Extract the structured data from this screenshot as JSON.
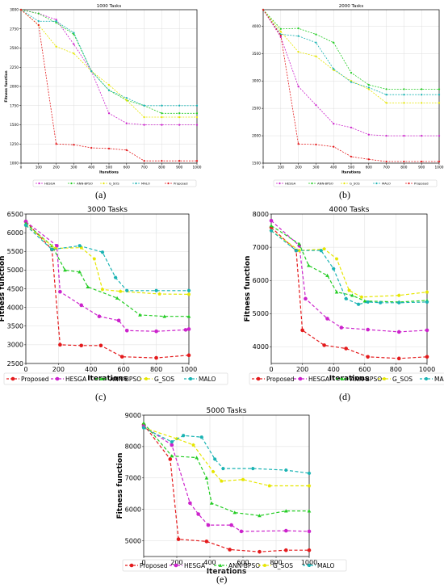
{
  "panel_labels": [
    "(a)",
    "(b)",
    "(c)",
    "(d)",
    "(e)"
  ],
  "colors": {
    "Proposed": "#e41a1c",
    "HESGA": "#cc22cc",
    "ANN-BPSO": "#22cc22",
    "G_SOS": "#e6e600",
    "MALO": "#19b3b3"
  },
  "chart_data": [
    {
      "type": "line",
      "title": "1000 Tasks",
      "xlabel": "Iterations",
      "ylabel": "Fitness function",
      "xlim": [
        0,
        1000
      ],
      "ylim": [
        1000,
        3000
      ],
      "xticks": [
        "0",
        "100",
        "200",
        "300",
        "400",
        "500",
        "600",
        "700",
        "800",
        "900",
        "1000"
      ],
      "yticks": [
        "1000",
        "1250",
        "1500",
        "1750",
        "2000",
        "2250",
        "2500",
        "2750",
        "3000"
      ],
      "legend": [
        "HESGA",
        "ANN-BPSO",
        "G_SOS",
        "MALO",
        "Proposed"
      ],
      "legend_position": "bottom",
      "grid": true,
      "series": [
        {
          "name": "HESGA",
          "x": [
            0,
            100,
            200,
            300,
            400,
            500,
            600,
            700,
            800,
            900,
            1000
          ],
          "y": [
            3000,
            2950,
            2870,
            2550,
            2200,
            1650,
            1520,
            1500,
            1500,
            1500,
            1500
          ]
        },
        {
          "name": "ANN-BPSO",
          "x": [
            0,
            100,
            200,
            300,
            400,
            500,
            600,
            700,
            800,
            900,
            1000
          ],
          "y": [
            3000,
            2950,
            2830,
            2680,
            2200,
            1950,
            1820,
            1750,
            1650,
            1650,
            1650
          ]
        },
        {
          "name": "G_SOS",
          "x": [
            0,
            100,
            200,
            300,
            400,
            500,
            600,
            700,
            800,
            900,
            1000
          ],
          "y": [
            3000,
            2800,
            2520,
            2430,
            2200,
            2020,
            1820,
            1600,
            1600,
            1600,
            1600
          ]
        },
        {
          "name": "MALO",
          "x": [
            0,
            100,
            200,
            300,
            400,
            500,
            600,
            700,
            800,
            900,
            1000
          ],
          "y": [
            3000,
            2850,
            2850,
            2700,
            2200,
            1950,
            1850,
            1750,
            1750,
            1750,
            1750
          ]
        },
        {
          "name": "Proposed",
          "x": [
            0,
            100,
            200,
            300,
            400,
            500,
            600,
            700,
            800,
            900,
            1000
          ],
          "y": [
            3000,
            2800,
            1250,
            1240,
            1200,
            1190,
            1170,
            1030,
            1030,
            1030,
            1030
          ]
        }
      ]
    },
    {
      "type": "line",
      "title": "2000 Tasks",
      "xlabel": "Iterations",
      "ylabel": "",
      "xlim": [
        0,
        1000
      ],
      "ylim": [
        1500,
        4300
      ],
      "xticks": [
        "0",
        "100",
        "200",
        "300",
        "400",
        "500",
        "600",
        "700",
        "800",
        "900",
        "1000"
      ],
      "yticks": [
        "1500",
        "2000",
        "2500",
        "3000",
        "3500",
        "4000"
      ],
      "legend": [
        "HESGA",
        "ANN-BPSO",
        "G_SOS",
        "MALO",
        "Proposed"
      ],
      "legend_position": "bottom",
      "grid": true,
      "series": [
        {
          "name": "HESGA",
          "x": [
            0,
            100,
            200,
            300,
            400,
            500,
            600,
            700,
            800,
            900,
            1000
          ],
          "y": [
            4300,
            3800,
            2900,
            2560,
            2220,
            2150,
            2020,
            2000,
            2000,
            2000,
            2000
          ]
        },
        {
          "name": "ANN-BPSO",
          "x": [
            0,
            100,
            200,
            300,
            400,
            500,
            600,
            700,
            800,
            900,
            1000
          ],
          "y": [
            4300,
            3950,
            3960,
            3850,
            3700,
            3150,
            2930,
            2850,
            2850,
            2850,
            2850
          ]
        },
        {
          "name": "G_SOS",
          "x": [
            0,
            100,
            200,
            300,
            400,
            500,
            600,
            700,
            800,
            900,
            1000
          ],
          "y": [
            4300,
            3900,
            3530,
            3450,
            3200,
            3000,
            2850,
            2600,
            2600,
            2600,
            2600
          ]
        },
        {
          "name": "MALO",
          "x": [
            0,
            100,
            200,
            300,
            400,
            500,
            600,
            700,
            800,
            900,
            1000
          ],
          "y": [
            4300,
            3850,
            3820,
            3700,
            3220,
            2980,
            2880,
            2750,
            2750,
            2750,
            2750
          ]
        },
        {
          "name": "Proposed",
          "x": [
            0,
            100,
            200,
            300,
            400,
            500,
            600,
            700,
            800,
            900,
            1000
          ],
          "y": [
            4300,
            3830,
            1850,
            1840,
            1800,
            1620,
            1570,
            1530,
            1530,
            1530,
            1530
          ]
        }
      ]
    },
    {
      "type": "line",
      "title": "3000 Tasks",
      "xlabel": "Iterations",
      "ylabel": "Fitness function",
      "xlim": [
        0,
        1000
      ],
      "ylim": [
        2500,
        6500
      ],
      "xticks": [
        "0",
        "200",
        "400",
        "600",
        "800",
        "1000"
      ],
      "yticks": [
        "2500",
        "3000",
        "3500",
        "4000",
        "4500",
        "5000",
        "5500",
        "6000",
        "6500"
      ],
      "legend": [
        "Proposed",
        "HESGA",
        "ANN-BPSO",
        "G_SOS",
        "MALO"
      ],
      "legend_position": "bottom",
      "grid": true,
      "series": [
        {
          "name": "Proposed",
          "x": [
            0,
            160,
            210,
            340,
            460,
            590,
            800,
            1000
          ],
          "y": [
            6300,
            5550,
            3000,
            2980,
            2980,
            2680,
            2650,
            2720
          ]
        },
        {
          "name": "HESGA",
          "x": [
            0,
            190,
            210,
            340,
            450,
            570,
            620,
            800,
            980,
            1000
          ],
          "y": [
            6300,
            5650,
            4420,
            4060,
            3760,
            3650,
            3380,
            3360,
            3400,
            3420
          ]
        },
        {
          "name": "ANN-BPSO",
          "x": [
            0,
            160,
            240,
            330,
            380,
            560,
            700,
            850,
            1000
          ],
          "y": [
            6250,
            5650,
            5000,
            4950,
            4550,
            4250,
            3800,
            3760,
            3760
          ]
        },
        {
          "name": "G_SOS",
          "x": [
            0,
            180,
            340,
            420,
            470,
            580,
            820,
            1000
          ],
          "y": [
            6200,
            5580,
            5600,
            5300,
            4480,
            4430,
            4360,
            4350
          ]
        },
        {
          "name": "MALO",
          "x": [
            0,
            160,
            330,
            470,
            550,
            620,
            800,
            1000
          ],
          "y": [
            6200,
            5550,
            5650,
            5480,
            4800,
            4450,
            4450,
            4450
          ]
        }
      ]
    },
    {
      "type": "line",
      "title": "4000 Tasks",
      "xlabel": "Iterations",
      "ylabel": "Fitness function",
      "xlim": [
        0,
        1000
      ],
      "ylim": [
        3500,
        8000
      ],
      "xticks": [
        "0",
        "200",
        "400",
        "600",
        "800",
        "1000"
      ],
      "yticks": [
        "4000",
        "5000",
        "6000",
        "7000",
        "8000"
      ],
      "legend": [
        "Proposed",
        "HESGA",
        "ANN-BPSO",
        "G_SOS",
        "MALO"
      ],
      "legend_position": "bottom",
      "grid": true,
      "series": [
        {
          "name": "Proposed",
          "x": [
            0,
            160,
            200,
            340,
            480,
            620,
            820,
            1000
          ],
          "y": [
            7600,
            6900,
            4500,
            4050,
            3950,
            3700,
            3650,
            3700
          ]
        },
        {
          "name": "HESGA",
          "x": [
            0,
            180,
            220,
            360,
            450,
            620,
            820,
            1000
          ],
          "y": [
            7800,
            7050,
            5450,
            4850,
            4580,
            4520,
            4450,
            4500
          ]
        },
        {
          "name": "ANN-BPSO",
          "x": [
            0,
            180,
            240,
            360,
            420,
            520,
            600,
            820,
            1000
          ],
          "y": [
            7650,
            7100,
            6450,
            6150,
            5650,
            5550,
            5380,
            5350,
            5400
          ]
        },
        {
          "name": "G_SOS",
          "x": [
            0,
            180,
            340,
            420,
            500,
            580,
            820,
            1000
          ],
          "y": [
            7500,
            6900,
            6950,
            6650,
            5700,
            5500,
            5550,
            5650
          ]
        },
        {
          "name": "MALO",
          "x": [
            0,
            160,
            320,
            400,
            480,
            560,
            620,
            700,
            820,
            1000
          ],
          "y": [
            7500,
            6900,
            6900,
            6350,
            5450,
            5280,
            5350,
            5330,
            5330,
            5350
          ]
        }
      ]
    },
    {
      "type": "line",
      "title": "5000 Tasks",
      "xlabel": "Iterations",
      "ylabel": "Fitness function",
      "xlim": [
        0,
        1000
      ],
      "ylim": [
        4500,
        9000
      ],
      "xticks": [
        "0",
        "200",
        "400",
        "600",
        "800",
        "1000"
      ],
      "yticks": [
        "5000",
        "6000",
        "7000",
        "8000",
        "9000"
      ],
      "legend": [
        "Proposed",
        "HESGA",
        "ANN-BPSO",
        "G_SOS",
        "MALO"
      ],
      "legend_position": "bottom",
      "grid": true,
      "series": [
        {
          "name": "Proposed",
          "x": [
            0,
            160,
            210,
            380,
            520,
            700,
            860,
            1000
          ],
          "y": [
            8700,
            7600,
            5050,
            4980,
            4720,
            4650,
            4700,
            4700
          ]
        },
        {
          "name": "HESGA",
          "x": [
            0,
            170,
            280,
            330,
            390,
            530,
            590,
            860,
            1000
          ],
          "y": [
            8650,
            8050,
            6200,
            5850,
            5500,
            5500,
            5300,
            5320,
            5300
          ]
        },
        {
          "name": "ANN-BPSO",
          "x": [
            0,
            170,
            320,
            380,
            410,
            550,
            700,
            860,
            1000
          ],
          "y": [
            8750,
            7700,
            7650,
            7000,
            6200,
            5900,
            5800,
            5950,
            5950
          ]
        },
        {
          "name": "G_SOS",
          "x": [
            0,
            200,
            300,
            420,
            470,
            600,
            760,
            1000
          ],
          "y": [
            8600,
            8250,
            8050,
            7200,
            6900,
            6950,
            6750,
            6750
          ]
        },
        {
          "name": "MALO",
          "x": [
            0,
            170,
            240,
            350,
            430,
            480,
            660,
            860,
            1000
          ],
          "y": [
            8600,
            8150,
            8350,
            8300,
            7600,
            7300,
            7300,
            7250,
            7150
          ]
        }
      ]
    }
  ]
}
